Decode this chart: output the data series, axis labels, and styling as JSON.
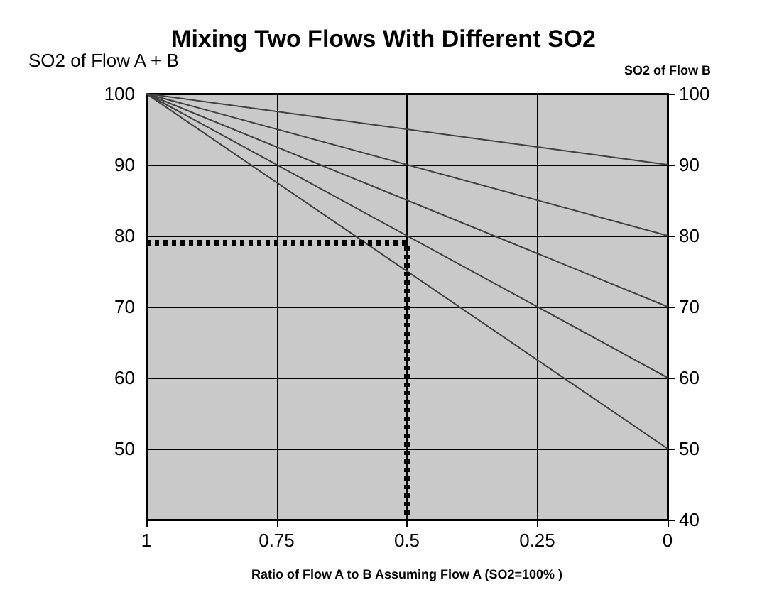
{
  "chart_data": {
    "type": "line",
    "title": "Mixing Two Flows With Different SO2",
    "xlabel": "Ratio of Flow A to B Assuming Flow A (SO2=100% )",
    "ylabel": "SO2 of Flow A + B",
    "y2label": "SO2 of Flow B",
    "xlim": [
      1,
      0
    ],
    "xticks": [
      1,
      0.75,
      0.5,
      0.25,
      0
    ],
    "ylim": [
      40,
      100
    ],
    "yticks": [
      {
        "value": 40,
        "label": null
      },
      50,
      60,
      70,
      80,
      90,
      100
    ],
    "y2lim": [
      40,
      100
    ],
    "y2ticks": [
      40,
      50,
      60,
      70,
      80,
      90,
      100
    ],
    "grid": true,
    "marker": "none",
    "line_style": "solid",
    "series": [
      {
        "color": "#404040",
        "x": [
          1,
          0
        ],
        "values": [
          100,
          90
        ]
      },
      {
        "color": "#404040",
        "x": [
          1,
          0
        ],
        "values": [
          100,
          80
        ]
      },
      {
        "color": "#404040",
        "x": [
          1,
          0
        ],
        "values": [
          100,
          70
        ]
      },
      {
        "color": "#404040",
        "x": [
          1,
          0
        ],
        "values": [
          100,
          60
        ]
      },
      {
        "color": "#404040",
        "x": [
          1,
          0
        ],
        "values": [
          100,
          50
        ]
      },
      {
        "color": "#000000",
        "x": [
          1,
          0.5,
          0.5
        ],
        "values": [
          79,
          79,
          40
        ],
        "line_style": "dotted"
      }
    ]
  }
}
